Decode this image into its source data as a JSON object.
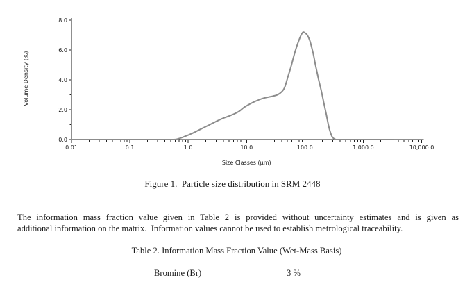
{
  "figure": {
    "caption": "Figure 1.  Particle size distribution in SRM 2448"
  },
  "chart_data": {
    "type": "line",
    "title": "",
    "xlabel": "Size Classes (µm)",
    "ylabel": "Volume Density (%)",
    "x_scale": "log",
    "xlim": [
      0.01,
      10000
    ],
    "ylim": [
      0.0,
      8.0
    ],
    "grid": false,
    "legend": "none",
    "line_color": "#8c8c8c",
    "axis_color": "#1f1f1f",
    "x_tick_values": [
      0.01,
      0.1,
      1,
      10,
      100,
      1000,
      10000
    ],
    "x_tick_labels": [
      "0.01",
      "0.1",
      "1.0",
      "10.0",
      "100.0",
      "1,000.0",
      "10,000.0"
    ],
    "y_tick_values": [
      0,
      2,
      4,
      6,
      8
    ],
    "y_tick_labels": [
      "0.0",
      "2.0",
      "4.0",
      "6.0",
      "8.0"
    ],
    "series": [
      {
        "name": "Volume density",
        "x": [
          0.01,
          0.2,
          0.4,
          0.55,
          0.65,
          0.8,
          1.0,
          1.3,
          1.7,
          2.2,
          2.9,
          3.8,
          4.8,
          6.0,
          7.5,
          9.0,
          11,
          13,
          16,
          20,
          24,
          29,
          34,
          40,
          45,
          52,
          58,
          68,
          78,
          86,
          93,
          100,
          110,
          122,
          138,
          150,
          170,
          190,
          210,
          232,
          252,
          270,
          290,
          310,
          330,
          355,
          500,
          1000,
          3300
        ],
        "y": [
          0,
          0,
          0,
          0,
          0.03,
          0.15,
          0.3,
          0.5,
          0.73,
          0.95,
          1.18,
          1.4,
          1.55,
          1.7,
          1.9,
          2.15,
          2.35,
          2.5,
          2.65,
          2.78,
          2.85,
          2.92,
          3.0,
          3.2,
          3.5,
          4.3,
          4.9,
          5.9,
          6.6,
          7.0,
          7.2,
          7.15,
          7.0,
          6.6,
          5.8,
          5.1,
          4.1,
          3.3,
          2.5,
          1.7,
          1.0,
          0.55,
          0.22,
          0.08,
          0.02,
          0,
          0,
          0,
          0
        ]
      }
    ]
  },
  "paragraph": {
    "lines": [
      "The information mass fraction value given in Table 2 is provided without uncertainty estimates and is given as",
      "additional information on the matrix.  Information values cannot be used to establish metrological traceability."
    ]
  },
  "table2": {
    "caption": "Table 2. Information Mass Fraction Value (Wet-Mass Basis)",
    "rows": [
      {
        "analyte": "Bromine (Br)",
        "value": "3 %"
      }
    ]
  }
}
